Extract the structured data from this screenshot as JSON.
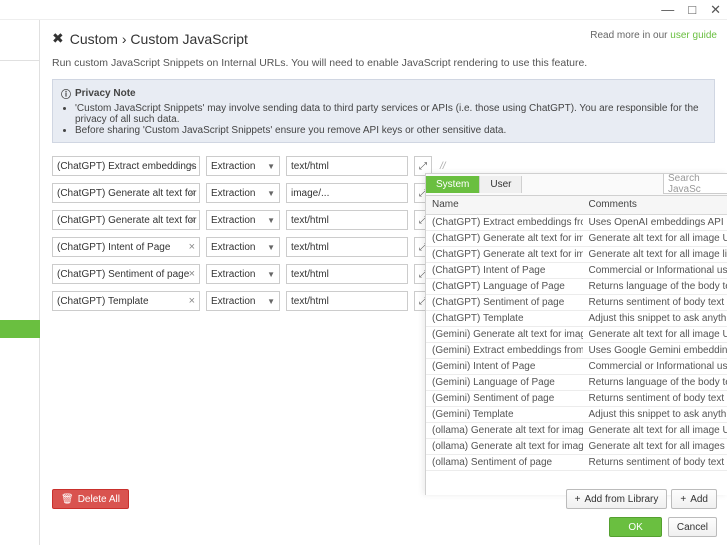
{
  "window": {
    "minimize": "—",
    "maximize": "□",
    "close": "✕"
  },
  "breadcrumb": {
    "root": "Custom",
    "sep": "›",
    "page": "Custom JavaScript"
  },
  "readmore": {
    "prefix": "Read more in our ",
    "link": "user guide"
  },
  "description": "Run custom JavaScript Snippets on Internal URLs. You will need to enable JavaScript rendering to use this feature.",
  "privacy": {
    "icon": "ⓘ",
    "title": "Privacy Note",
    "bullets": [
      "'Custom JavaScript Snippets' may involve sending data to third party services or APIs (i.e. those using ChatGPT). You are responsible for the privacy of all such data.",
      "Before sharing 'Custom JavaScript Snippets' ensure you remove API keys or other sensitive data."
    ]
  },
  "mode_label": "Extraction",
  "snippets": [
    {
      "name": "(ChatGPT) Extract embeddings f",
      "type": "text/html"
    },
    {
      "name": "(ChatGPT) Generate alt text for i",
      "type": "image/..."
    },
    {
      "name": "(ChatGPT) Generate alt text for i",
      "type": "text/html"
    },
    {
      "name": "(ChatGPT) Intent of Page",
      "type": "text/html"
    },
    {
      "name": "(ChatGPT) Sentiment of page",
      "type": "text/html"
    },
    {
      "name": "(ChatGPT) Template",
      "type": "text/html"
    }
  ],
  "panel": {
    "tabs": {
      "system": "System",
      "user": "User"
    },
    "search_placeholder": "Search JavaSc",
    "columns": {
      "name": "Name",
      "comments": "Comments"
    },
    "rows": [
      {
        "name": "(ChatGPT) Extract embeddings from page con...",
        "comments": "Uses OpenAI embeddings API"
      },
      {
        "name": "(ChatGPT) Generate alt text for images",
        "comments": "Generate alt text for all image URLs crawle"
      },
      {
        "name": "(ChatGPT) Generate alt text for images on page",
        "comments": "Generate alt text for all image links on a pa"
      },
      {
        "name": "(ChatGPT) Intent of Page",
        "comments": "Commercial or Informational using ChatGP"
      },
      {
        "name": "(ChatGPT) Language of Page",
        "comments": "Returns language of the body text using Ch"
      },
      {
        "name": "(ChatGPT) Sentiment of page",
        "comments": "Returns sentiment of body text using ChatG"
      },
      {
        "name": "(ChatGPT) Template",
        "comments": "Adjust this snippet to ask anything..."
      },
      {
        "name": "(Gemini) Generate alt text for images",
        "comments": "Generate alt text for all image URLs crawle"
      },
      {
        "name": "(Gemini) Extract embeddings from page content",
        "comments": "Uses Google Gemini embeddings API"
      },
      {
        "name": "(Gemini) Intent of Page",
        "comments": "Commercial or Informational using Google"
      },
      {
        "name": "(Gemini) Language of Page",
        "comments": "Returns language of the body text using Go"
      },
      {
        "name": "(Gemini) Sentiment of page",
        "comments": "Returns sentiment of body text using Googl"
      },
      {
        "name": "(Gemini) Template",
        "comments": "Adjust this snippet to ask anything"
      },
      {
        "name": "(ollama) Generate alt text for images",
        "comments": "Generate alt text for all image URLs crawle"
      },
      {
        "name": "(ollama) Generate alt text for images on page",
        "comments": "Generate alt text for all images on page"
      },
      {
        "name": "(ollama) Sentiment of page",
        "comments": "Returns sentiment of body text using ollama"
      }
    ]
  },
  "buttons": {
    "delete_all": "Delete All",
    "add_from_library": "Add from Library",
    "add": "Add",
    "ok": "OK",
    "cancel": "Cancel"
  },
  "icons": {
    "trash": "🗑",
    "plus": "+",
    "expand": "⤢"
  },
  "colors": {
    "accent": "#6abf40",
    "danger": "#d9534f",
    "privacy_bg": "#e8ecf3"
  }
}
